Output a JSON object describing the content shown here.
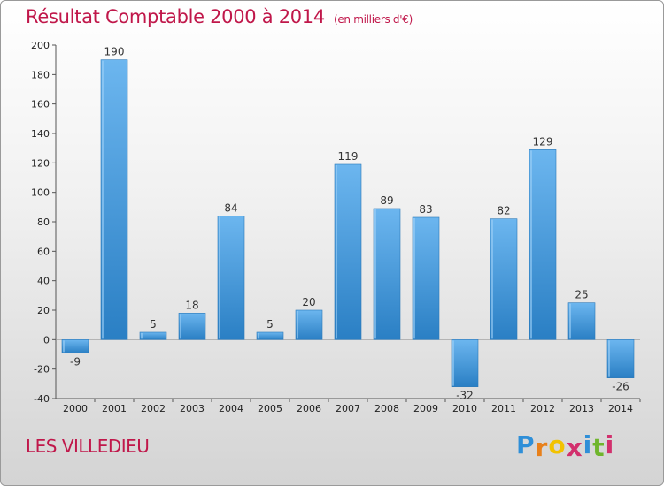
{
  "header": {
    "title": "Résultat Comptable 2000 à 2014",
    "subtitle": "(en milliers d'€)"
  },
  "footer": {
    "place": "LES VILLEDIEU",
    "logo_letters": [
      "P",
      "r",
      "o",
      "x",
      "i",
      "t",
      "i"
    ],
    "logo_colors": [
      "#2f8fd8",
      "#e8801a",
      "#f2c200",
      "#d2306d",
      "#2f8fd8",
      "#6fb52c",
      "#d2306d"
    ]
  },
  "colors": {
    "title": "#c0174a",
    "bar_light": "#6cb6ef",
    "bar_dark": "#2a7fc4"
  },
  "chart_data": {
    "type": "bar",
    "title": "Résultat Comptable 2000 à 2014",
    "subtitle": "(en milliers d'€)",
    "xlabel": "",
    "ylabel": "",
    "categories": [
      "2000",
      "2001",
      "2002",
      "2003",
      "2004",
      "2005",
      "2006",
      "2007",
      "2008",
      "2009",
      "2010",
      "2011",
      "2012",
      "2013",
      "2014"
    ],
    "values": [
      -9,
      190,
      5,
      18,
      84,
      5,
      20,
      119,
      89,
      83,
      -32,
      82,
      129,
      25,
      -26
    ],
    "ylim": [
      -40,
      200
    ],
    "yticks": [
      -40,
      -20,
      0,
      20,
      40,
      60,
      80,
      100,
      120,
      140,
      160,
      180,
      200
    ],
    "grid": false
  }
}
